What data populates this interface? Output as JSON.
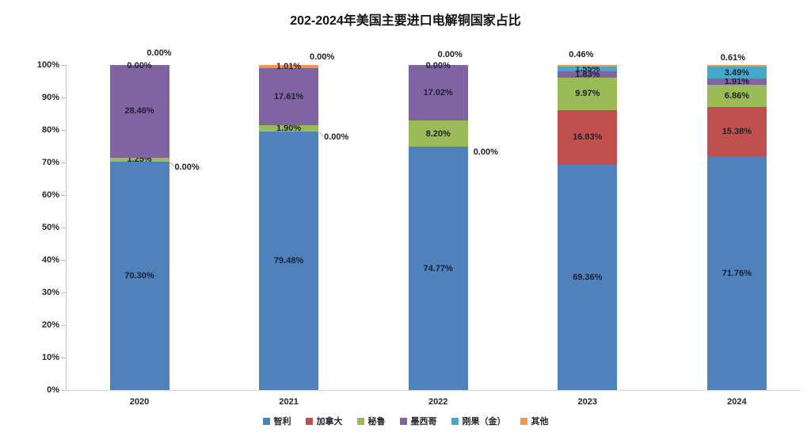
{
  "title": "202-2024年美国主要进口电解铜国家占比",
  "chart_data": {
    "type": "bar",
    "subtype": "stacked-100-percent-column",
    "title": "202-2024年美国主要进口电解铜国家占比",
    "categories": [
      "2020",
      "2021",
      "2022",
      "2023",
      "2024"
    ],
    "series": [
      {
        "name": "智利",
        "color": "#4F81BD",
        "values": [
          70.3,
          79.48,
          74.77,
          69.36,
          71.76
        ]
      },
      {
        "name": "加拿大",
        "color": "#C0504D",
        "values": [
          0.0,
          0.0,
          0.0,
          16.83,
          15.38
        ]
      },
      {
        "name": "秘鲁",
        "color": "#9BBB59",
        "values": [
          1.25,
          1.9,
          8.2,
          9.97,
          6.86
        ]
      },
      {
        "name": "墨西哥",
        "color": "#8064A2",
        "values": [
          28.46,
          17.61,
          17.02,
          1.83,
          1.91
        ]
      },
      {
        "name": "刚果（金）",
        "color": "#45AAC9",
        "values": [
          0.0,
          0.0,
          0.0,
          1.55,
          3.49
        ]
      },
      {
        "name": "其他",
        "color": "#F79646",
        "values": [
          0.0,
          1.01,
          0.0,
          0.46,
          0.61
        ]
      }
    ],
    "ylim": [
      0,
      100
    ],
    "ytick_labels": [
      "0%",
      "10%",
      "20%",
      "30%",
      "40%",
      "50%",
      "60%",
      "70%",
      "80%",
      "90%",
      "100%"
    ],
    "xlabel": "",
    "ylabel": "",
    "grid": false,
    "legend_position": "bottom",
    "label_format": "0.00%",
    "axis_color": "#C6C6C6",
    "label_color": "#1C2030"
  }
}
